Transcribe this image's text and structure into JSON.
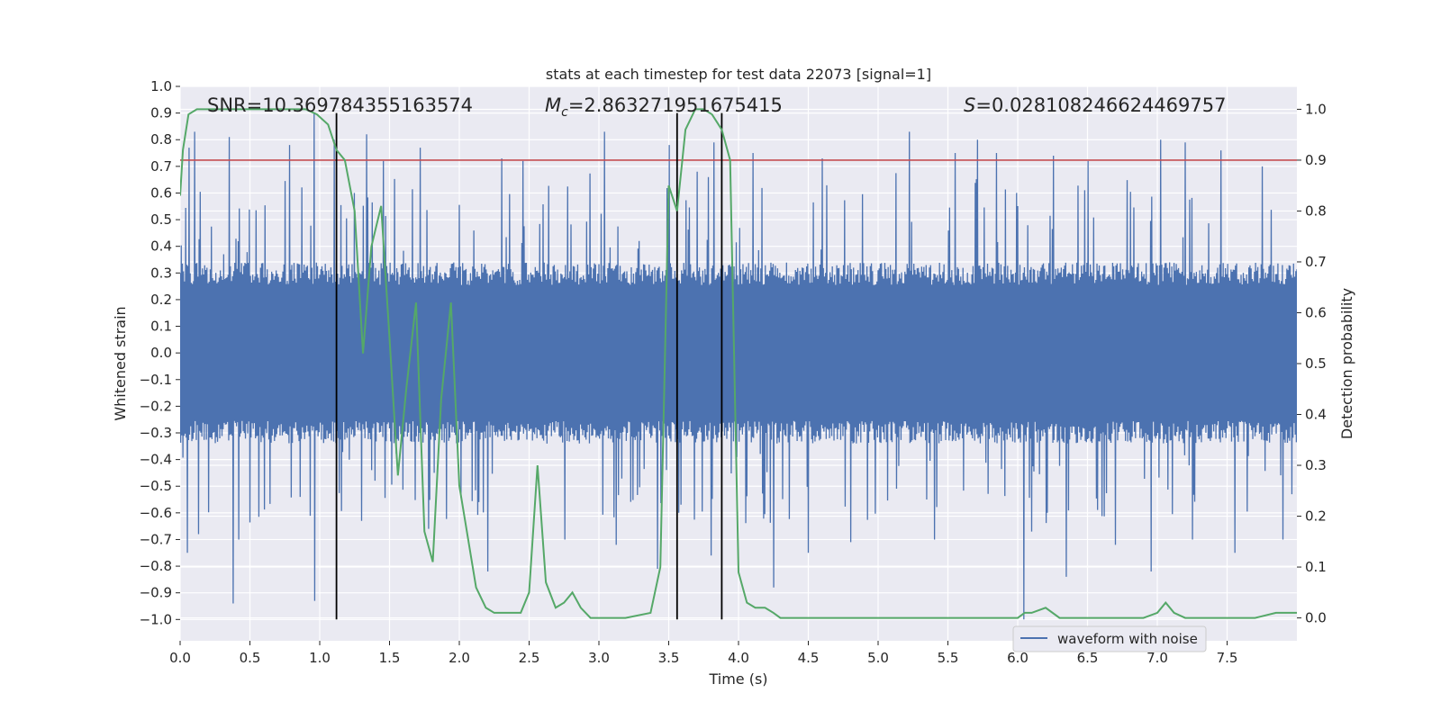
{
  "chart_data": {
    "type": "line",
    "title": "stats at each timestep for test data 22073 [signal=1]",
    "xlabel": "Time (s)",
    "ylabel": "Whitened strain",
    "y2label": "Detection probability",
    "xlim": [
      0.0,
      8.0
    ],
    "ylim": [
      -1.08,
      1.0
    ],
    "y2lim": [
      -0.045,
      1.045
    ],
    "xticks": [
      0.0,
      0.5,
      1.0,
      1.5,
      2.0,
      2.5,
      3.0,
      3.5,
      4.0,
      4.5,
      5.0,
      5.5,
      6.0,
      6.5,
      7.0,
      7.5
    ],
    "yticks": [
      -1.0,
      -0.9,
      -0.8,
      -0.7,
      -0.6,
      -0.5,
      -0.4,
      -0.3,
      -0.2,
      -0.1,
      0.0,
      0.1,
      0.2,
      0.3,
      0.4,
      0.5,
      0.6,
      0.7,
      0.8,
      0.9,
      1.0
    ],
    "y2ticks": [
      0.0,
      0.1,
      0.2,
      0.3,
      0.4,
      0.5,
      0.6,
      0.7,
      0.8,
      0.9,
      1.0
    ],
    "grid": true,
    "legend": {
      "placement": "lower-right",
      "entries": [
        "waveform with noise"
      ]
    },
    "annotations": {
      "snr": "SNR=10.369784355163574",
      "mc_symbol": "M",
      "mc_sub": "c",
      "mc_value": "=2.863271951675415",
      "s_symbol": "S",
      "s_value": "=0.028108246624469757"
    },
    "threshold": {
      "axis": "right",
      "value": 0.9,
      "color": "#c44e52"
    },
    "vlines": {
      "x": [
        1.12,
        3.56,
        3.88
      ],
      "ymin": -1.0,
      "ymax": 0.9,
      "color": "#000000"
    },
    "waveform": {
      "name": "waveform with noise",
      "axis": "left",
      "color": "#4c72b0",
      "sample_rate": 2048,
      "envelope": 0.34,
      "peaks_high": [
        [
          0.06,
          0.77
        ],
        [
          0.1,
          0.83
        ],
        [
          0.35,
          0.81
        ],
        [
          0.78,
          0.78
        ],
        [
          0.96,
          0.9
        ],
        [
          1.1,
          0.8
        ],
        [
          1.33,
          0.82
        ],
        [
          1.45,
          0.72
        ],
        [
          1.72,
          0.77
        ],
        [
          2.3,
          0.73
        ],
        [
          2.45,
          0.72
        ],
        [
          3.04,
          0.83
        ],
        [
          3.5,
          0.78
        ],
        [
          3.7,
          0.68
        ],
        [
          3.82,
          0.79
        ],
        [
          4.1,
          0.75
        ],
        [
          4.6,
          0.73
        ],
        [
          5.22,
          0.83
        ],
        [
          5.55,
          0.75
        ],
        [
          5.71,
          0.8
        ],
        [
          5.85,
          0.75
        ],
        [
          6.25,
          0.74
        ],
        [
          6.5,
          0.72
        ],
        [
          7.02,
          0.8
        ],
        [
          7.2,
          0.79
        ],
        [
          7.45,
          0.76
        ],
        [
          7.75,
          0.7
        ]
      ],
      "peaks_low": [
        [
          0.05,
          -0.75
        ],
        [
          0.13,
          -0.68
        ],
        [
          0.38,
          -0.94
        ],
        [
          0.42,
          -0.7
        ],
        [
          0.96,
          -0.93
        ],
        [
          1.3,
          -0.63
        ],
        [
          2.2,
          -0.82
        ],
        [
          2.75,
          -0.7
        ],
        [
          3.12,
          -0.72
        ],
        [
          3.42,
          -0.81
        ],
        [
          3.8,
          -0.76
        ],
        [
          4.25,
          -0.88
        ],
        [
          4.5,
          -0.75
        ],
        [
          4.8,
          -0.71
        ],
        [
          5.4,
          -0.7
        ],
        [
          6.04,
          -1.0
        ],
        [
          6.35,
          -0.84
        ],
        [
          6.7,
          -0.72
        ],
        [
          6.95,
          -0.82
        ],
        [
          7.25,
          -0.7
        ],
        [
          7.55,
          -0.75
        ],
        [
          7.9,
          -0.7
        ]
      ]
    },
    "detection_probability": {
      "axis": "right",
      "color": "#55a868",
      "x": [
        0.0,
        0.02,
        0.06,
        0.12,
        0.2,
        0.35,
        0.5,
        0.7,
        0.9,
        0.98,
        1.06,
        1.12,
        1.18,
        1.25,
        1.31,
        1.37,
        1.44,
        1.5,
        1.56,
        1.62,
        1.69,
        1.75,
        1.81,
        1.87,
        1.94,
        2.0,
        2.06,
        2.12,
        2.19,
        2.25,
        2.31,
        2.38,
        2.44,
        2.5,
        2.56,
        2.62,
        2.69,
        2.75,
        2.81,
        2.87,
        2.94,
        3.0,
        3.06,
        3.19,
        3.37,
        3.44,
        3.5,
        3.56,
        3.62,
        3.69,
        3.75,
        3.81,
        3.88,
        3.94,
        4.0,
        4.06,
        4.12,
        4.19,
        4.25,
        4.3,
        4.37,
        4.45,
        4.6,
        4.8,
        5.0,
        5.2,
        5.4,
        5.6,
        5.8,
        6.0,
        6.05,
        6.1,
        6.2,
        6.3,
        6.5,
        6.7,
        6.9,
        7.0,
        7.06,
        7.12,
        7.2,
        7.3,
        7.5,
        7.7,
        7.85,
        8.0
      ],
      "y": [
        0.83,
        0.92,
        0.99,
        1.0,
        1.0,
        1.0,
        1.0,
        1.0,
        1.0,
        0.99,
        0.97,
        0.92,
        0.9,
        0.8,
        0.52,
        0.73,
        0.81,
        0.55,
        0.28,
        0.45,
        0.62,
        0.17,
        0.11,
        0.43,
        0.62,
        0.26,
        0.16,
        0.06,
        0.02,
        0.01,
        0.01,
        0.01,
        0.01,
        0.05,
        0.3,
        0.07,
        0.02,
        0.03,
        0.05,
        0.02,
        0.0,
        0.0,
        0.0,
        0.0,
        0.01,
        0.1,
        0.85,
        0.8,
        0.96,
        1.0,
        1.0,
        0.99,
        0.96,
        0.9,
        0.09,
        0.03,
        0.02,
        0.02,
        0.01,
        0.0,
        0.0,
        0.0,
        0.0,
        0.0,
        0.0,
        0.0,
        0.0,
        0.0,
        0.0,
        0.0,
        0.01,
        0.01,
        0.02,
        0.0,
        0.0,
        0.0,
        0.0,
        0.01,
        0.03,
        0.01,
        0.0,
        0.0,
        0.0,
        0.0,
        0.01,
        0.01
      ]
    }
  }
}
